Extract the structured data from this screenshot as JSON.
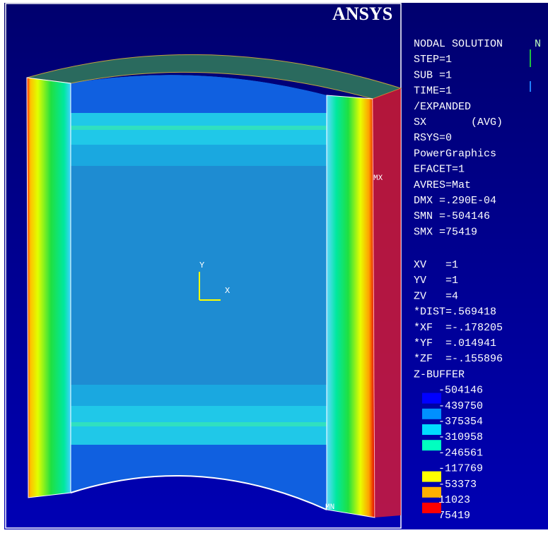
{
  "logo": "ANSYS",
  "info": [
    "NODAL SOLUTION",
    "STEP=1",
    "SUB =1",
    "TIME=1",
    "/EXPANDED",
    "SX       (AVG)",
    "RSYS=0",
    "PowerGraphics",
    "EFACET=1",
    "AVRES=Mat",
    "DMX =.290E-04",
    "SMN =-504146",
    "SMX =75419"
  ],
  "view": [
    "XV   =1",
    "YV   =1",
    "ZV   =4",
    "*DIST=.569418",
    "*XF  =-.178205",
    "*YF  =.014941",
    "*ZF  =-.155896",
    "Z-BUFFER"
  ],
  "legend": {
    "values": [
      "-504146",
      "-439750",
      "-375354",
      "-310958",
      "-246561",
      "-117769",
      "-53373",
      "11023",
      "75419"
    ],
    "colors": [
      "#0000ff",
      "#0090ff",
      "#00dcff",
      "#00ffc0",
      null,
      "#ffff00",
      "#ffb000",
      "#ff0000"
    ]
  },
  "labels": {
    "max": "MX",
    "min": "MN",
    "axis_y": "Y",
    "axis_x": "X",
    "node": "N"
  }
}
